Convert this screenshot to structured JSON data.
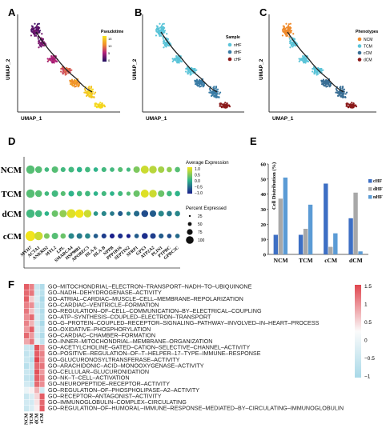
{
  "panels": {
    "A": {
      "letter": "A",
      "xlabel": "UMAP_1",
      "ylabel": "UMAP_2",
      "legend_title": "Pseudotime",
      "legend_ticks": [
        "15",
        "10",
        "5",
        "0"
      ]
    },
    "B": {
      "letter": "B",
      "xlabel": "UMAP_1",
      "ylabel": "UMAP_2",
      "legend_title": "Sample",
      "legend": [
        {
          "name": "nHF",
          "color": "#5bc4d8"
        },
        {
          "name": "dHF",
          "color": "#3a7ca5"
        },
        {
          "name": "cHF",
          "color": "#8b1a1a"
        }
      ]
    },
    "C": {
      "letter": "C",
      "xlabel": "UMAP_1",
      "ylabel": "UMAP_2",
      "legend_title": "Phenotypes",
      "legend": [
        {
          "name": "NCM",
          "color": "#ef8a2b"
        },
        {
          "name": "TCM",
          "color": "#5bc4d8"
        },
        {
          "name": "cCM",
          "color": "#3a6f95"
        },
        {
          "name": "dCM",
          "color": "#8b1a1a"
        }
      ]
    },
    "D": {
      "letter": "D"
    },
    "E": {
      "letter": "E"
    },
    "F": {
      "letter": "F"
    }
  },
  "dotplot": {
    "rows": [
      "NCM",
      "TCM",
      "dCM",
      "cCM"
    ],
    "genes": [
      "MYH7",
      "ACTA1",
      "ANKRD2",
      "MYL2",
      "LPL",
      "SMARCA4",
      "HSP90B1",
      "APOBEC3",
      "HLA-E",
      "HLA-B",
      "NPPB",
      "PPP1R16",
      "SEPTIN2",
      "SFRP1",
      "GPX3",
      "ATP2A2",
      "PLIN1",
      "PTPRC",
      "GPRC5C"
    ],
    "size_legend_title": "Percent Expressed",
    "size_legend": [
      "25",
      "50",
      "75",
      "100"
    ],
    "color_legend_title": "Average Expression",
    "color_legend_ticks": [
      "1.0",
      "0.5",
      "0.0",
      "−0.5",
      "−1.0"
    ],
    "dots": [
      [
        [
          0.2,
          0.8
        ],
        [
          0.2,
          0.6
        ],
        [
          0.1,
          0.3
        ],
        [
          0.2,
          0.55
        ],
        [
          0.1,
          0.35
        ],
        [
          0.1,
          0.45
        ],
        [
          0.0,
          0.4
        ],
        [
          0.1,
          0.4
        ],
        [
          0.0,
          0.3
        ],
        [
          0.1,
          0.35
        ],
        [
          0.1,
          0.3
        ],
        [
          0.2,
          0.35
        ],
        [
          0.1,
          0.25
        ],
        [
          0.4,
          0.55
        ],
        [
          0.8,
          0.75
        ],
        [
          0.7,
          0.7
        ],
        [
          0.6,
          0.55
        ],
        [
          0.5,
          0.4
        ],
        [
          0.2,
          0.4
        ]
      ],
      [
        [
          0.2,
          0.8
        ],
        [
          0.2,
          0.6
        ],
        [
          0.1,
          0.3
        ],
        [
          0.1,
          0.55
        ],
        [
          0.2,
          0.35
        ],
        [
          0.0,
          0.45
        ],
        [
          0.1,
          0.4
        ],
        [
          0.1,
          0.4
        ],
        [
          0.0,
          0.3
        ],
        [
          0.1,
          0.35
        ],
        [
          0.0,
          0.3
        ],
        [
          0.1,
          0.35
        ],
        [
          0.2,
          0.25
        ],
        [
          0.3,
          0.55
        ],
        [
          0.9,
          0.75
        ],
        [
          0.8,
          0.7
        ],
        [
          0.3,
          0.55
        ],
        [
          0.1,
          0.4
        ],
        [
          0.0,
          0.4
        ]
      ],
      [
        [
          0.1,
          0.8
        ],
        [
          0.1,
          0.6
        ],
        [
          0.0,
          0.3
        ],
        [
          0.3,
          0.55
        ],
        [
          0.5,
          0.65
        ],
        [
          0.9,
          0.85
        ],
        [
          1.0,
          0.8
        ],
        [
          0.8,
          0.7
        ],
        [
          -0.2,
          0.3
        ],
        [
          -0.3,
          0.35
        ],
        [
          -0.4,
          0.3
        ],
        [
          -0.6,
          0.35
        ],
        [
          -0.3,
          0.25
        ],
        [
          -0.5,
          0.45
        ],
        [
          -0.7,
          0.6
        ],
        [
          -0.6,
          0.55
        ],
        [
          -0.3,
          0.45
        ],
        [
          -0.4,
          0.4
        ],
        [
          -0.3,
          0.4
        ]
      ],
      [
        [
          1.0,
          1.0
        ],
        [
          0.8,
          0.8
        ],
        [
          0.4,
          0.45
        ],
        [
          0.2,
          0.55
        ],
        [
          0.3,
          0.4
        ],
        [
          -0.3,
          0.45
        ],
        [
          -0.4,
          0.45
        ],
        [
          -0.3,
          0.4
        ],
        [
          -0.6,
          0.3
        ],
        [
          -0.8,
          0.35
        ],
        [
          -1.0,
          0.35
        ],
        [
          -0.9,
          0.35
        ],
        [
          -1.0,
          0.25
        ],
        [
          -0.6,
          0.3
        ],
        [
          -0.9,
          0.5
        ],
        [
          -0.8,
          0.45
        ],
        [
          -0.6,
          0.35
        ],
        [
          -0.7,
          0.3
        ],
        [
          -0.5,
          0.3
        ]
      ]
    ]
  },
  "chart_data": {
    "type": "bar",
    "ylabel": "Cell Distribution (%)",
    "categories": [
      "NCM",
      "TCM",
      "cCM",
      "dCM"
    ],
    "ylim": [
      0,
      60
    ],
    "yticks": [
      "0",
      "10",
      "20",
      "30",
      "40",
      "50",
      "60"
    ],
    "legend_position": "top-right",
    "series": [
      {
        "name": "cHF",
        "color": "#3d6fc4",
        "values": [
          13,
          13,
          47,
          24
        ]
      },
      {
        "name": "dHF",
        "color": "#a8a8a8",
        "values": [
          37,
          17,
          5,
          41
        ]
      },
      {
        "name": "nHF",
        "color": "#5b9bd5",
        "values": [
          51,
          33,
          14,
          2
        ]
      }
    ]
  },
  "heatmap": {
    "columns": [
      "NCM",
      "TCM",
      "dCM",
      "cCM"
    ],
    "legend_ticks": [
      "1.5",
      "1",
      "0.5",
      "0",
      "−0.5",
      "−1"
    ],
    "terms": [
      "GO–MITOCHONDRIAL–ELECTRON–TRANSPORT–NADH–TO–UBIQUINONE",
      "GO–NADH–DEHYDROGENASE–ACTIVITY",
      "GO–ATRIAL–CARDIAC–MUSCLE–CELL–MEMBRANE–REPOLARIZATION",
      "GO–CARDIAC–VENTRICLE–FORMATION",
      "GO–REGULATION–OF–CELL–COMMUNICATION–BY–ELECTRICAL–COUPLING",
      "GO–ATP–SYNTHESIS–COUPLED–ELECTRON–TRANSPORT",
      "GO–G–PROTEIN–COUPLED–RECEPTOR–SIGNALING–PATHWAY–INVOLVED–IN–HEART–PROCESS",
      "GO–OXIDATIVE–PHOSPHORYLATION",
      "GO–CARDIAC–CHAMBER–FORMATION",
      "GO–INNER–MITOCHONDRIAL–MEMBRANE–ORGANIZATION",
      "GO–ACETYLCHOLINE–GATED–CATION–SELECTIVE–CHANNEL–ACTIVITY",
      "GO–POSITIVE–REGULATION–OF–T–HELPER–17–TYPE–IMMUNE–RESPONSE",
      "GO–GLUCURONOSYLTRANSFERASE–ACTIVITY",
      "GO–ARACHIDONIC–ACID–MONOOXYGENASE–ACTIVITY",
      "GO–CELLULAR–GLUCURONIDATION",
      "GO–NK–T–CELL–ACTIVATION",
      "GO–NEUROPEPTIDE–RECEPTOR–ACTIVITY",
      "GO–REGULATION–OF–PHOSPHOLIPASE–A2–ACTIVITY",
      "GO–RECEPTOR–ANTAGONIST–ACTIVITY",
      "GO–IMMUNOGLOBULIN–COMPLEX–CIRCULATING",
      "GO–REGULATION–OF–HUMORAL–IMMUNE–RESPONSE–MEDIATED–BY–CIRCULATING–IMMUNOGLOBULIN"
    ],
    "values": [
      [
        1.3,
        1.0,
        -0.6,
        -0.9
      ],
      [
        1.2,
        1.1,
        -0.5,
        -0.8
      ],
      [
        1.3,
        0.4,
        -0.4,
        -1.0
      ],
      [
        1.0,
        0.9,
        -0.6,
        -0.8
      ],
      [
        1.1,
        0.5,
        -0.5,
        -0.9
      ],
      [
        0.9,
        1.2,
        -0.4,
        -0.8
      ],
      [
        1.0,
        0.6,
        -0.5,
        -1.0
      ],
      [
        0.8,
        1.3,
        -0.4,
        -0.7
      ],
      [
        1.2,
        0.8,
        -0.5,
        -0.9
      ],
      [
        0.7,
        1.1,
        -0.3,
        -0.7
      ],
      [
        -0.6,
        -0.7,
        1.4,
        0.8
      ],
      [
        -0.7,
        -0.6,
        1.3,
        1.0
      ],
      [
        -0.6,
        -0.8,
        1.5,
        0.9
      ],
      [
        -0.8,
        -0.6,
        1.2,
        1.1
      ],
      [
        -0.6,
        -0.7,
        1.4,
        0.8
      ],
      [
        -0.7,
        -0.8,
        1.3,
        1.0
      ],
      [
        -0.5,
        -0.7,
        1.2,
        0.9
      ],
      [
        -0.2,
        0.1,
        0.6,
        -0.5
      ],
      [
        -0.6,
        -0.4,
        0.3,
        1.3
      ],
      [
        -0.5,
        -0.5,
        0.2,
        1.2
      ],
      [
        -0.6,
        -0.4,
        0.1,
        1.3
      ]
    ]
  }
}
